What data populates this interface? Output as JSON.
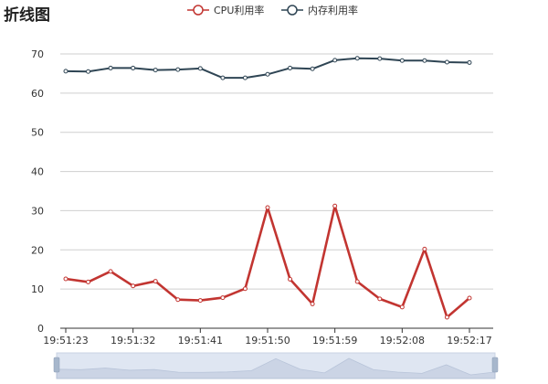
{
  "chart_data": {
    "type": "line",
    "title": "折线图",
    "x": [
      "19:51:23",
      "19:51:26",
      "19:51:29",
      "19:51:32",
      "19:51:35",
      "19:51:38",
      "19:51:41",
      "19:51:44",
      "19:51:47",
      "19:51:50",
      "19:51:53",
      "19:51:56",
      "19:51:59",
      "19:52:02",
      "19:52:05",
      "19:52:08",
      "19:52:11",
      "19:52:14",
      "19:52:17"
    ],
    "x_tick_labels": [
      "19:51:23",
      "19:51:32",
      "19:51:41",
      "19:51:50",
      "19:51:59",
      "19:52:08",
      "19:52:17"
    ],
    "series": [
      {
        "name": "CPU利用率",
        "color": "#c23531",
        "values": [
          12.6,
          11.8,
          14.5,
          10.8,
          12.0,
          7.3,
          7.1,
          7.8,
          10.1,
          30.8,
          12.5,
          6.2,
          31.2,
          11.9,
          7.5,
          5.4,
          20.2,
          2.8,
          7.7
        ]
      },
      {
        "name": "内存利用率",
        "color": "#2f4554",
        "values": [
          65.6,
          65.5,
          66.4,
          66.4,
          65.9,
          66.0,
          66.3,
          63.9,
          63.9,
          64.8,
          66.4,
          66.2,
          68.4,
          68.9,
          68.8,
          68.3,
          68.3,
          67.9,
          67.8
        ]
      }
    ],
    "y_ticks": [
      0,
      10,
      20,
      30,
      40,
      50,
      60,
      70
    ],
    "ylim": [
      0,
      70
    ],
    "grid": true,
    "legend_position": "top-center",
    "data_zoom": true
  }
}
